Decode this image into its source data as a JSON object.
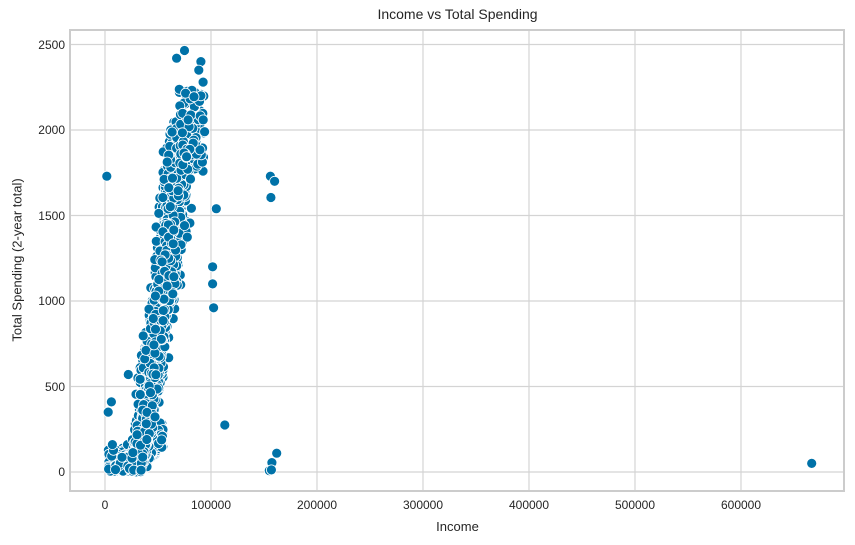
{
  "chart_data": {
    "type": "scatter",
    "title": "Income vs Total Spending",
    "xlabel": "Income",
    "ylabel": "Total Spending (2-year total)",
    "xlim": [
      -33000,
      700000
    ],
    "ylim": [
      -120,
      2590
    ],
    "x_ticks": [
      0,
      100000,
      200000,
      300000,
      400000,
      500000,
      600000
    ],
    "y_ticks": [
      0,
      500,
      1000,
      1500,
      2000,
      2500
    ],
    "x_tick_labels": [
      "0",
      "100000",
      "200000",
      "300000",
      "400000",
      "500000",
      "600000"
    ],
    "y_tick_labels": [
      "0",
      "500",
      "1000",
      "1500",
      "2000",
      "2500"
    ],
    "grid": true,
    "legend": null,
    "marker_color": "#0072a8",
    "marker_edge_color": "#ffffff",
    "notable_points": [
      {
        "x": 1730,
        "y": 1730
      },
      {
        "x": 3000,
        "y": 350
      },
      {
        "x": 6000,
        "y": 410
      },
      {
        "x": 7000,
        "y": 160
      },
      {
        "x": 22000,
        "y": 570
      },
      {
        "x": 101500,
        "y": 1200
      },
      {
        "x": 101500,
        "y": 1100
      },
      {
        "x": 102500,
        "y": 960
      },
      {
        "x": 105000,
        "y": 1540
      },
      {
        "x": 113000,
        "y": 275
      },
      {
        "x": 156000,
        "y": 1730
      },
      {
        "x": 160000,
        "y": 1700
      },
      {
        "x": 156500,
        "y": 1605
      },
      {
        "x": 162000,
        "y": 110
      },
      {
        "x": 157500,
        "y": 55
      },
      {
        "x": 155000,
        "y": 8
      },
      {
        "x": 157000,
        "y": 12
      },
      {
        "x": 666666,
        "y": 50
      },
      {
        "x": 67500,
        "y": 2420
      },
      {
        "x": 75000,
        "y": 2465
      },
      {
        "x": 90500,
        "y": 2400
      },
      {
        "x": 88500,
        "y": 2350
      },
      {
        "x": 92500,
        "y": 2280
      },
      {
        "x": 76000,
        "y": 2215
      },
      {
        "x": 90500,
        "y": 2200
      },
      {
        "x": 84000,
        "y": 2195
      },
      {
        "x": 94000,
        "y": 1990
      }
    ],
    "main_cluster": {
      "description": "dense positively-correlated band of ~2200 points",
      "income_range": [
        1700,
        113000
      ],
      "spending_range": [
        5,
        2525
      ],
      "trend": "spending rises roughly linearly from ~0 at income 2000-60000 to ~2000 at income 65000-100000"
    }
  }
}
